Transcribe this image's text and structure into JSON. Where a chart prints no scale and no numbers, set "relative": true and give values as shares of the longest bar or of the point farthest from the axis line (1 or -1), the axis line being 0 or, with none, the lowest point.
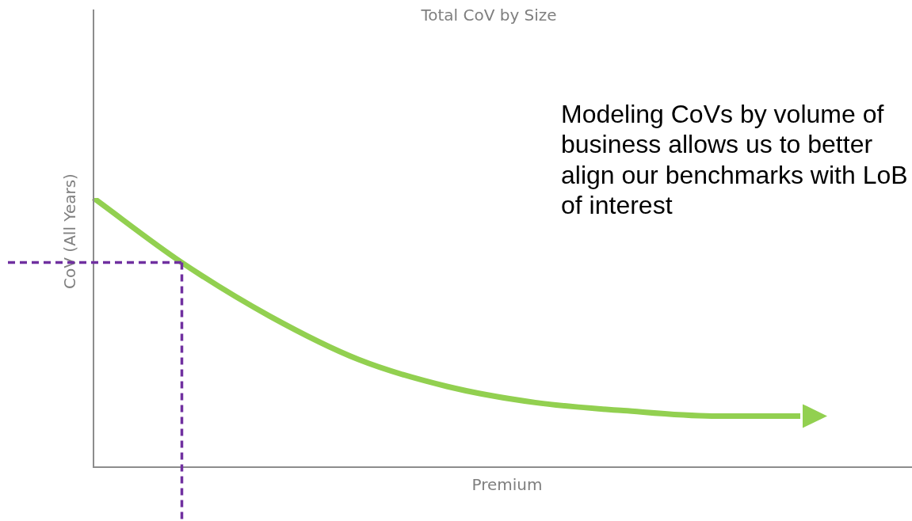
{
  "chart_data": {
    "type": "line",
    "title": "Total CoV by Size",
    "xlabel": "Premium",
    "ylabel": "CoV (All Years)",
    "relative": true,
    "categories": [
      null,
      null,
      null,
      null,
      null,
      null,
      null,
      null,
      null
    ],
    "series": [
      {
        "color": "#92d050",
        "values": [
          1,
          0.76,
          0.56,
          0.4,
          0.3,
          0.24,
          0.21,
          0.19,
          0.19
        ]
      }
    ],
    "ref_lines": [
      {
        "axis": "y",
        "value": 0.76,
        "color": "#7030a0",
        "line_style": "dashed"
      }
    ],
    "annotations": [
      "Modeling CoVs by volume of business allows us to better align our benchmarks with LoB of interest"
    ],
    "marker": "none",
    "legend": false
  }
}
